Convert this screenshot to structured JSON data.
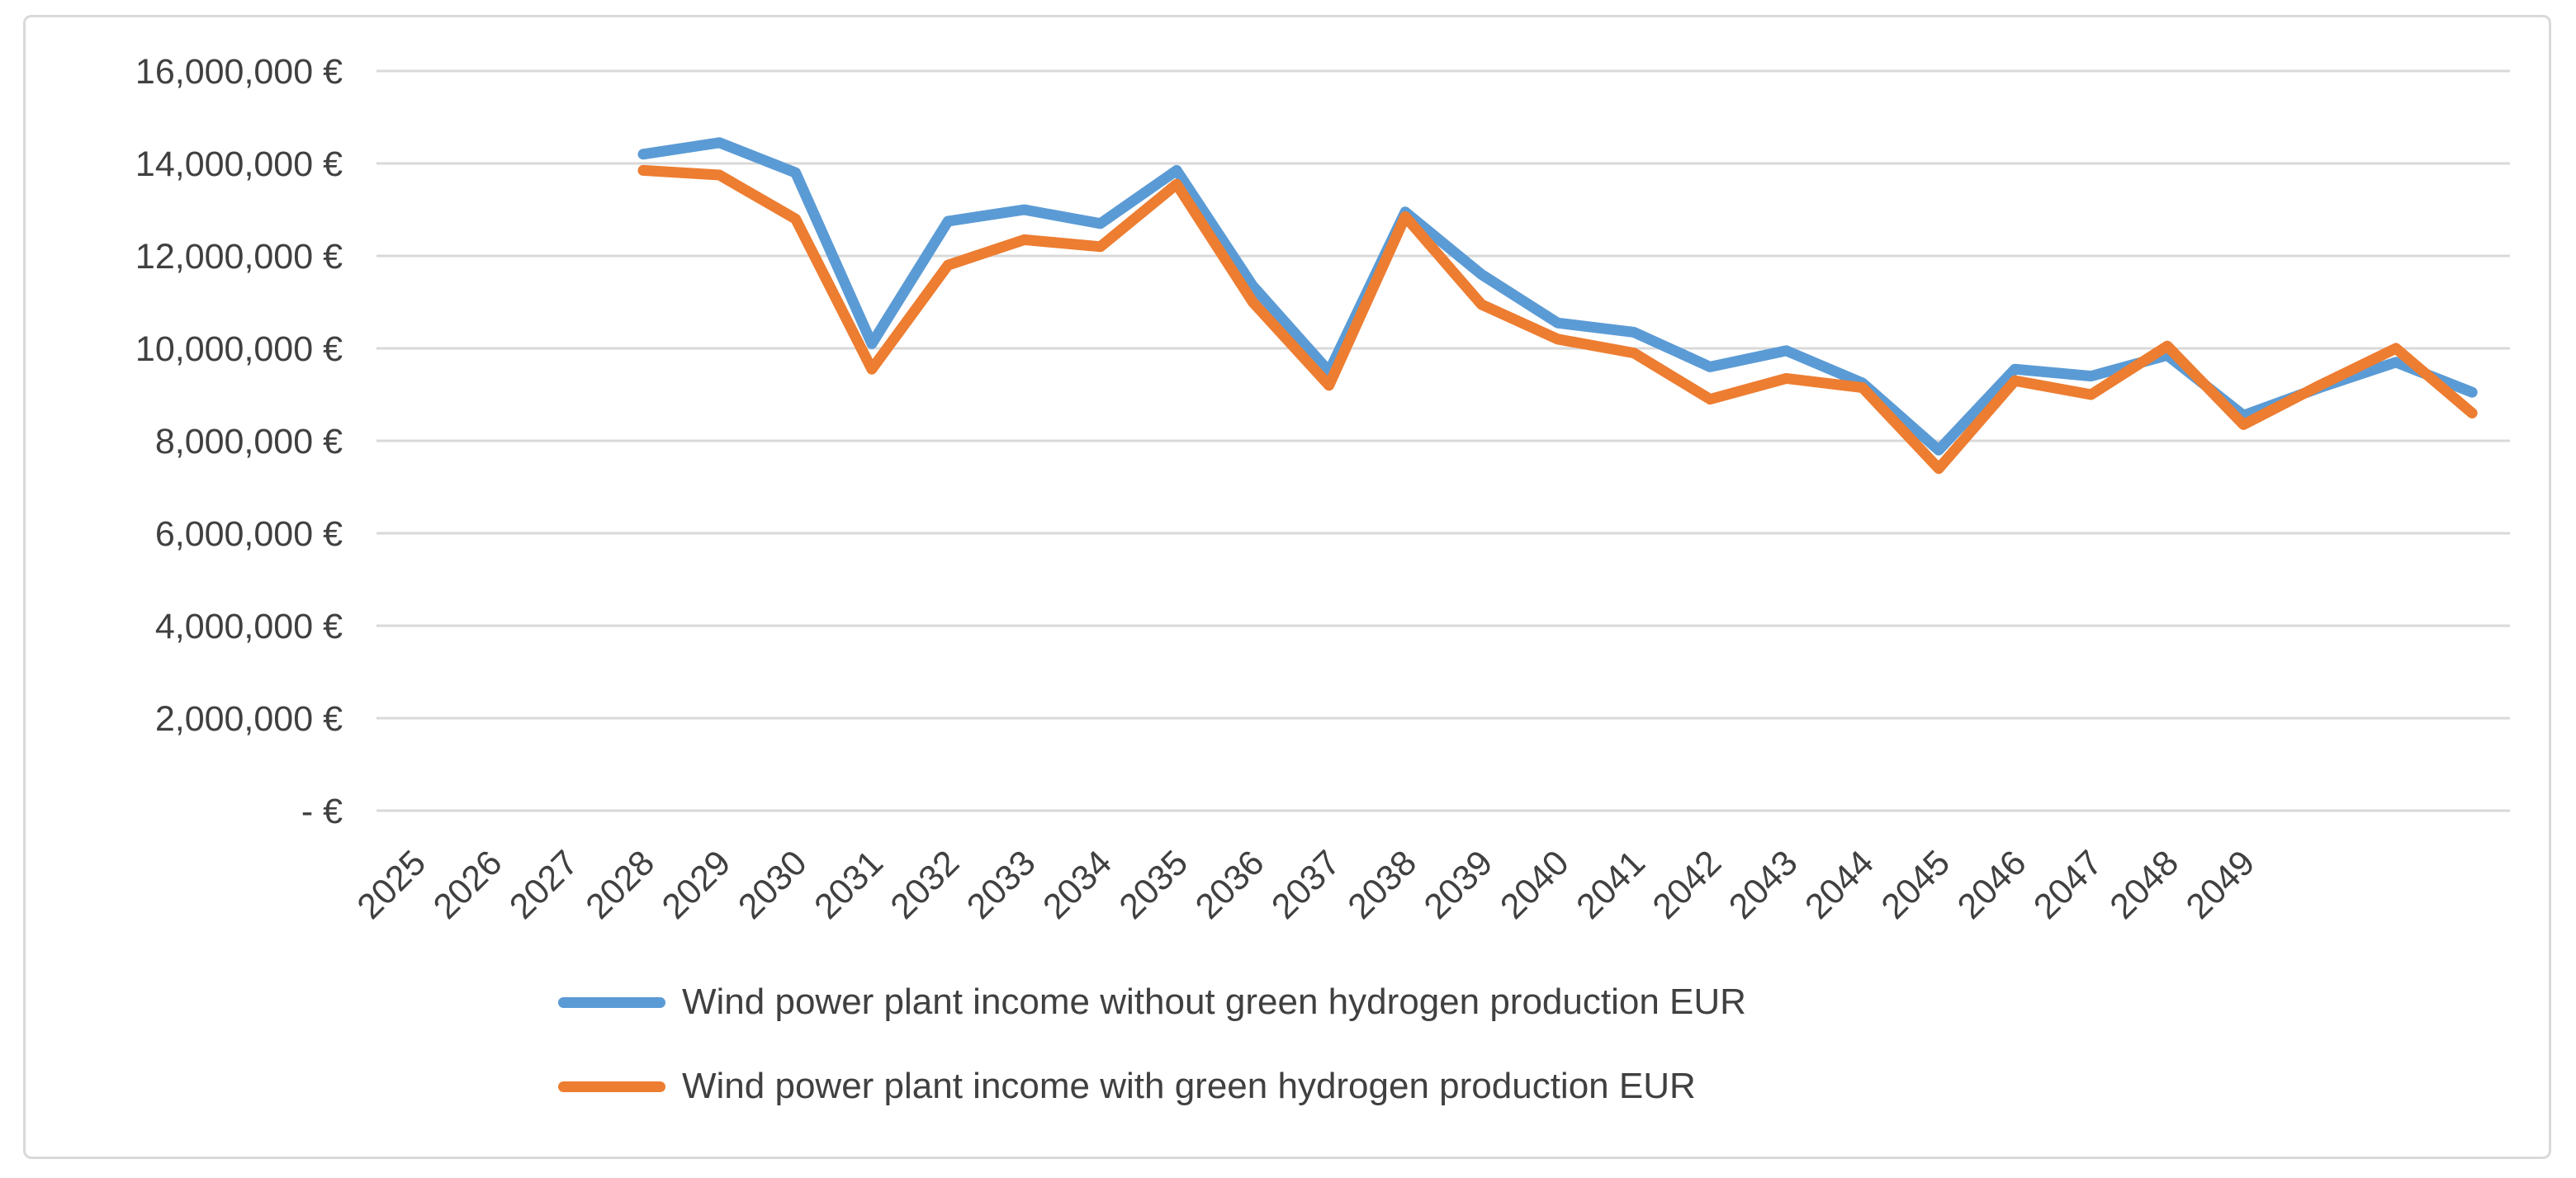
{
  "figure": {
    "background": "#ffffff",
    "border_color": "#d9d9d9",
    "gridline_color": "#d9d9d9",
    "axis_text_color": "#404040"
  },
  "chart_data": {
    "type": "line",
    "title": "",
    "xlabel": "",
    "ylabel": "",
    "ylim": [
      0,
      16000000
    ],
    "grid": "horizontal",
    "legend_position": "bottom-left",
    "y_ticks": [
      {
        "value": 0,
        "label": "- €"
      },
      {
        "value": 2000000,
        "label": "2,000,000 €"
      },
      {
        "value": 4000000,
        "label": "4,000,000 €"
      },
      {
        "value": 6000000,
        "label": "6,000,000 €"
      },
      {
        "value": 8000000,
        "label": "8,000,000 €"
      },
      {
        "value": 10000000,
        "label": "10,000,000 €"
      },
      {
        "value": 12000000,
        "label": "12,000,000 €"
      },
      {
        "value": 14000000,
        "label": "14,000,000 €"
      },
      {
        "value": 16000000,
        "label": "16,000,000 €"
      }
    ],
    "x_tick_labels": [
      "2025",
      "2026",
      "2027",
      "2028",
      "2029",
      "2030",
      "2031",
      "2032",
      "2033",
      "2034",
      "2035",
      "2036",
      "2037",
      "2038",
      "2039",
      "2040",
      "2041",
      "2042",
      "2043",
      "2044",
      "2045",
      "2046",
      "2047",
      "2048",
      "2049"
    ],
    "x_tick_years": [
      2025,
      2026,
      2027,
      2028,
      2029,
      2030,
      2031,
      2032,
      2033,
      2034,
      2035,
      2036,
      2037,
      2038,
      2039,
      2040,
      2041,
      2042,
      2043,
      2044,
      2045,
      2046,
      2047,
      2048,
      2049
    ],
    "series": [
      {
        "name": "Wind power plant income without green hydrogen production EUR",
        "color": "#5B9BD5",
        "x": [
          2028,
          2029,
          2030,
          2031,
          2032,
          2033,
          2034,
          2035,
          2036,
          2037,
          2038,
          2039,
          2040,
          2041,
          2042,
          2043,
          2044,
          2045,
          2046,
          2047,
          2048,
          2049,
          2050,
          2051,
          2052
        ],
        "values": [
          14200000,
          14450000,
          13800000,
          10100000,
          12750000,
          13000000,
          12700000,
          13850000,
          11350000,
          9500000,
          12950000,
          11600000,
          10550000,
          10350000,
          9600000,
          9950000,
          9250000,
          7800000,
          9550000,
          9400000,
          9850000,
          8550000,
          9150000,
          9700000,
          9050000
        ]
      },
      {
        "name": "Wind power plant income with green hydrogen production EUR",
        "color": "#ED7D31",
        "x": [
          2028,
          2029,
          2030,
          2031,
          2032,
          2033,
          2034,
          2035,
          2036,
          2037,
          2038,
          2039,
          2040,
          2041,
          2042,
          2043,
          2044,
          2045,
          2046,
          2047,
          2048,
          2049,
          2050,
          2051,
          2052
        ],
        "values": [
          13850000,
          13750000,
          12800000,
          9550000,
          11800000,
          12350000,
          12200000,
          13550000,
          11000000,
          9200000,
          12850000,
          10950000,
          10200000,
          9900000,
          8900000,
          9350000,
          9150000,
          7400000,
          9300000,
          9000000,
          10050000,
          8350000,
          9200000,
          10000000,
          8600000
        ]
      }
    ]
  }
}
